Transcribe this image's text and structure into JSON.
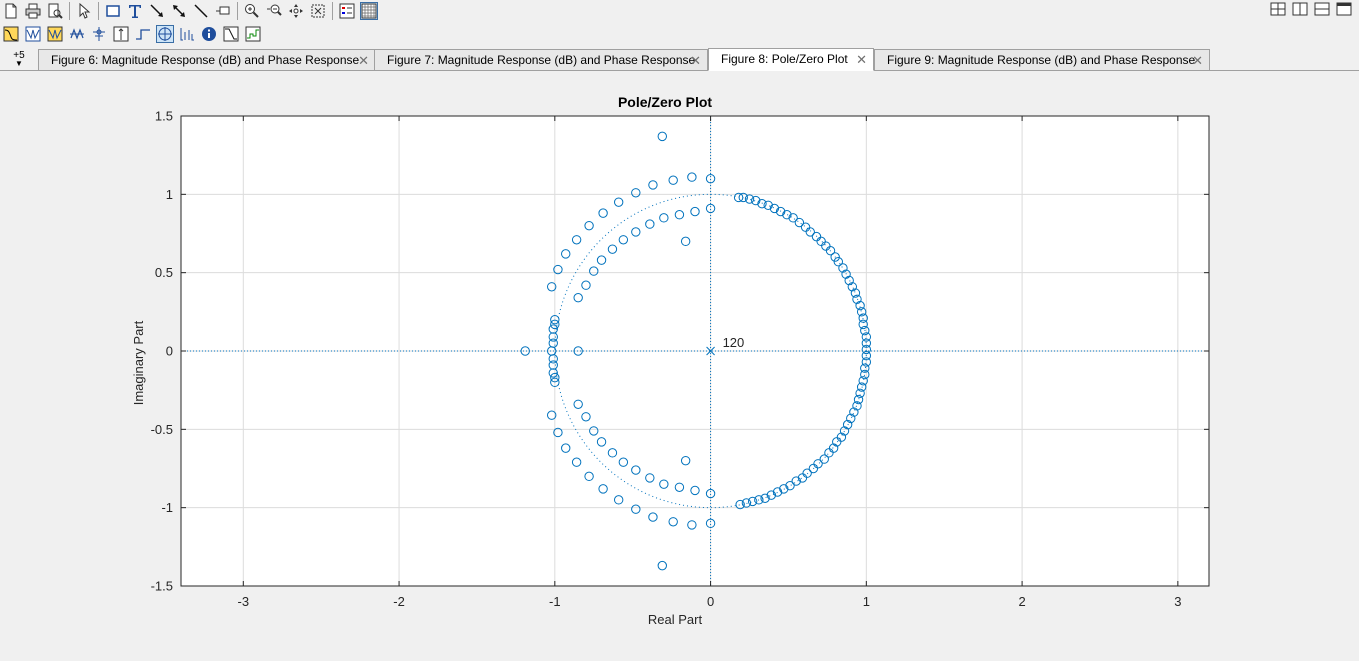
{
  "toolbar": {
    "row1_icons": [
      "new-file-icon",
      "print-icon",
      "print-preview-icon",
      "pointer-icon",
      "rectangle-icon",
      "text-icon",
      "arrow-icon",
      "double-arrow-icon",
      "line-icon",
      "pin-icon",
      "zoom-in-icon",
      "zoom-out-icon",
      "pan-icon",
      "fit-icon",
      "legend-icon",
      "grid-icon"
    ],
    "row2_icons": [
      "magnitude-icon",
      "phase-icon",
      "mag-phase-icon",
      "group-delay-icon",
      "phase-delay-icon",
      "impulse-icon",
      "step-icon",
      "pole-zero-icon",
      "coefficients-icon",
      "info-icon",
      "cost-icon",
      "noise-icon"
    ],
    "layout_icons": [
      "tile-icon",
      "split-vertical-icon",
      "split-horizontal-icon",
      "maximize-icon"
    ]
  },
  "tabs": {
    "more_label": "+5",
    "items": [
      {
        "label": "Figure 6: Magnitude Response (dB) and Phase Response",
        "active": false
      },
      {
        "label": "Figure 7: Magnitude Response (dB) and Phase Response",
        "active": false
      },
      {
        "label": "Figure 8: Pole/Zero Plot",
        "active": true
      },
      {
        "label": "Figure 9: Magnitude Response (dB) and Phase Response",
        "active": false
      }
    ]
  },
  "chart_data": {
    "type": "scatter",
    "title": "Pole/Zero Plot",
    "xlabel": "Real Part",
    "ylabel": "Imaginary Part",
    "xlim": [
      -3.4,
      3.2
    ],
    "ylim": [
      -1.5,
      1.5
    ],
    "xticks": [
      -3,
      -2,
      -1,
      0,
      1,
      2,
      3
    ],
    "yticks": [
      -1.5,
      -1,
      -0.5,
      0,
      0.5,
      1,
      1.5
    ],
    "xtick_labels": [
      "-3",
      "-2",
      "-1",
      "0",
      "1",
      "2",
      "3"
    ],
    "ytick_labels": [
      "-1.5",
      "-1",
      "-0.5",
      "0",
      "0.5",
      "1",
      "1.5"
    ],
    "grid": true,
    "marker_color": "#0072bd",
    "unit_circle": true,
    "poles": [
      {
        "x": 0,
        "y": 0,
        "multiplicity_label": "120"
      }
    ],
    "zeros": [
      {
        "x": 0.18,
        "y": 0.98
      },
      {
        "x": 0.21,
        "y": 0.98
      },
      {
        "x": 0.25,
        "y": 0.97
      },
      {
        "x": 0.29,
        "y": 0.96
      },
      {
        "x": 0.33,
        "y": 0.94
      },
      {
        "x": 0.37,
        "y": 0.93
      },
      {
        "x": 0.41,
        "y": 0.91
      },
      {
        "x": 0.45,
        "y": 0.89
      },
      {
        "x": 0.49,
        "y": 0.87
      },
      {
        "x": 0.53,
        "y": 0.85
      },
      {
        "x": 0.57,
        "y": 0.82
      },
      {
        "x": 0.61,
        "y": 0.79
      },
      {
        "x": 0.64,
        "y": 0.76
      },
      {
        "x": 0.68,
        "y": 0.73
      },
      {
        "x": 0.71,
        "y": 0.7
      },
      {
        "x": 0.74,
        "y": 0.67
      },
      {
        "x": 0.77,
        "y": 0.64
      },
      {
        "x": 0.8,
        "y": 0.6
      },
      {
        "x": 0.82,
        "y": 0.57
      },
      {
        "x": 0.85,
        "y": 0.53
      },
      {
        "x": 0.87,
        "y": 0.49
      },
      {
        "x": 0.89,
        "y": 0.45
      },
      {
        "x": 0.91,
        "y": 0.41
      },
      {
        "x": 0.93,
        "y": 0.37
      },
      {
        "x": 0.94,
        "y": 0.33
      },
      {
        "x": 0.96,
        "y": 0.29
      },
      {
        "x": 0.97,
        "y": 0.25
      },
      {
        "x": 0.98,
        "y": 0.21
      },
      {
        "x": 0.98,
        "y": 0.17
      },
      {
        "x": 0.99,
        "y": 0.13
      },
      {
        "x": 1.0,
        "y": 0.09
      },
      {
        "x": 1.0,
        "y": 0.05
      },
      {
        "x": 1.0,
        "y": 0.01
      },
      {
        "x": 1.0,
        "y": -0.03
      },
      {
        "x": 1.0,
        "y": -0.07
      },
      {
        "x": 0.99,
        "y": -0.11
      },
      {
        "x": 0.99,
        "y": -0.15
      },
      {
        "x": 0.98,
        "y": -0.19
      },
      {
        "x": 0.97,
        "y": -0.23
      },
      {
        "x": 0.96,
        "y": -0.27
      },
      {
        "x": 0.95,
        "y": -0.31
      },
      {
        "x": 0.94,
        "y": -0.35
      },
      {
        "x": 0.92,
        "y": -0.39
      },
      {
        "x": 0.9,
        "y": -0.43
      },
      {
        "x": 0.88,
        "y": -0.47
      },
      {
        "x": 0.86,
        "y": -0.51
      },
      {
        "x": 0.84,
        "y": -0.55
      },
      {
        "x": 0.81,
        "y": -0.58
      },
      {
        "x": 0.79,
        "y": -0.62
      },
      {
        "x": 0.76,
        "y": -0.65
      },
      {
        "x": 0.73,
        "y": -0.69
      },
      {
        "x": 0.69,
        "y": -0.72
      },
      {
        "x": 0.66,
        "y": -0.75
      },
      {
        "x": 0.62,
        "y": -0.78
      },
      {
        "x": 0.59,
        "y": -0.81
      },
      {
        "x": 0.55,
        "y": -0.83
      },
      {
        "x": 0.51,
        "y": -0.86
      },
      {
        "x": 0.47,
        "y": -0.88
      },
      {
        "x": 0.43,
        "y": -0.9
      },
      {
        "x": 0.39,
        "y": -0.92
      },
      {
        "x": 0.35,
        "y": -0.94
      },
      {
        "x": 0.31,
        "y": -0.95
      },
      {
        "x": 0.27,
        "y": -0.96
      },
      {
        "x": 0.23,
        "y": -0.97
      },
      {
        "x": 0.19,
        "y": -0.98
      },
      {
        "x": -0.31,
        "y": 1.37
      },
      {
        "x": 0.0,
        "y": 1.1
      },
      {
        "x": -0.12,
        "y": 1.11
      },
      {
        "x": -0.24,
        "y": 1.09
      },
      {
        "x": -0.37,
        "y": 1.06
      },
      {
        "x": -0.48,
        "y": 1.01
      },
      {
        "x": -0.59,
        "y": 0.95
      },
      {
        "x": -0.69,
        "y": 0.88
      },
      {
        "x": -0.78,
        "y": 0.8
      },
      {
        "x": -0.86,
        "y": 0.71
      },
      {
        "x": -0.93,
        "y": 0.62
      },
      {
        "x": -0.98,
        "y": 0.52
      },
      {
        "x": -1.02,
        "y": 0.41
      },
      {
        "x": -1.0,
        "y": 0.2
      },
      {
        "x": -1.0,
        "y": 0.17
      },
      {
        "x": -1.01,
        "y": 0.14
      },
      {
        "x": -1.01,
        "y": 0.09
      },
      {
        "x": -1.01,
        "y": 0.05
      },
      {
        "x": -1.02,
        "y": 0.0
      },
      {
        "x": -1.01,
        "y": -0.05
      },
      {
        "x": -1.01,
        "y": -0.09
      },
      {
        "x": -1.01,
        "y": -0.14
      },
      {
        "x": -1.0,
        "y": -0.17
      },
      {
        "x": -1.0,
        "y": -0.2
      },
      {
        "x": -1.19,
        "y": 0.0
      },
      {
        "x": -0.85,
        "y": 0.0
      },
      {
        "x": 0.0,
        "y": 0.91
      },
      {
        "x": -0.1,
        "y": 0.89
      },
      {
        "x": -0.2,
        "y": 0.87
      },
      {
        "x": -0.3,
        "y": 0.85
      },
      {
        "x": -0.39,
        "y": 0.81
      },
      {
        "x": -0.48,
        "y": 0.76
      },
      {
        "x": -0.56,
        "y": 0.71
      },
      {
        "x": -0.63,
        "y": 0.65
      },
      {
        "x": -0.7,
        "y": 0.58
      },
      {
        "x": -0.75,
        "y": 0.51
      },
      {
        "x": -0.8,
        "y": 0.42
      },
      {
        "x": -0.85,
        "y": 0.34
      },
      {
        "x": -0.16,
        "y": 0.7
      },
      {
        "x": -0.31,
        "y": -1.37
      },
      {
        "x": 0.0,
        "y": -1.1
      },
      {
        "x": -0.12,
        "y": -1.11
      },
      {
        "x": -0.24,
        "y": -1.09
      },
      {
        "x": -0.37,
        "y": -1.06
      },
      {
        "x": -0.48,
        "y": -1.01
      },
      {
        "x": -0.59,
        "y": -0.95
      },
      {
        "x": -0.69,
        "y": -0.88
      },
      {
        "x": -0.78,
        "y": -0.8
      },
      {
        "x": -0.86,
        "y": -0.71
      },
      {
        "x": -0.93,
        "y": -0.62
      },
      {
        "x": -0.98,
        "y": -0.52
      },
      {
        "x": -1.02,
        "y": -0.41
      },
      {
        "x": 0.0,
        "y": -0.91
      },
      {
        "x": -0.1,
        "y": -0.89
      },
      {
        "x": -0.2,
        "y": -0.87
      },
      {
        "x": -0.3,
        "y": -0.85
      },
      {
        "x": -0.39,
        "y": -0.81
      },
      {
        "x": -0.48,
        "y": -0.76
      },
      {
        "x": -0.56,
        "y": -0.71
      },
      {
        "x": -0.63,
        "y": -0.65
      },
      {
        "x": -0.7,
        "y": -0.58
      },
      {
        "x": -0.75,
        "y": -0.51
      },
      {
        "x": -0.8,
        "y": -0.42
      },
      {
        "x": -0.85,
        "y": -0.34
      },
      {
        "x": -0.16,
        "y": -0.7
      }
    ]
  }
}
